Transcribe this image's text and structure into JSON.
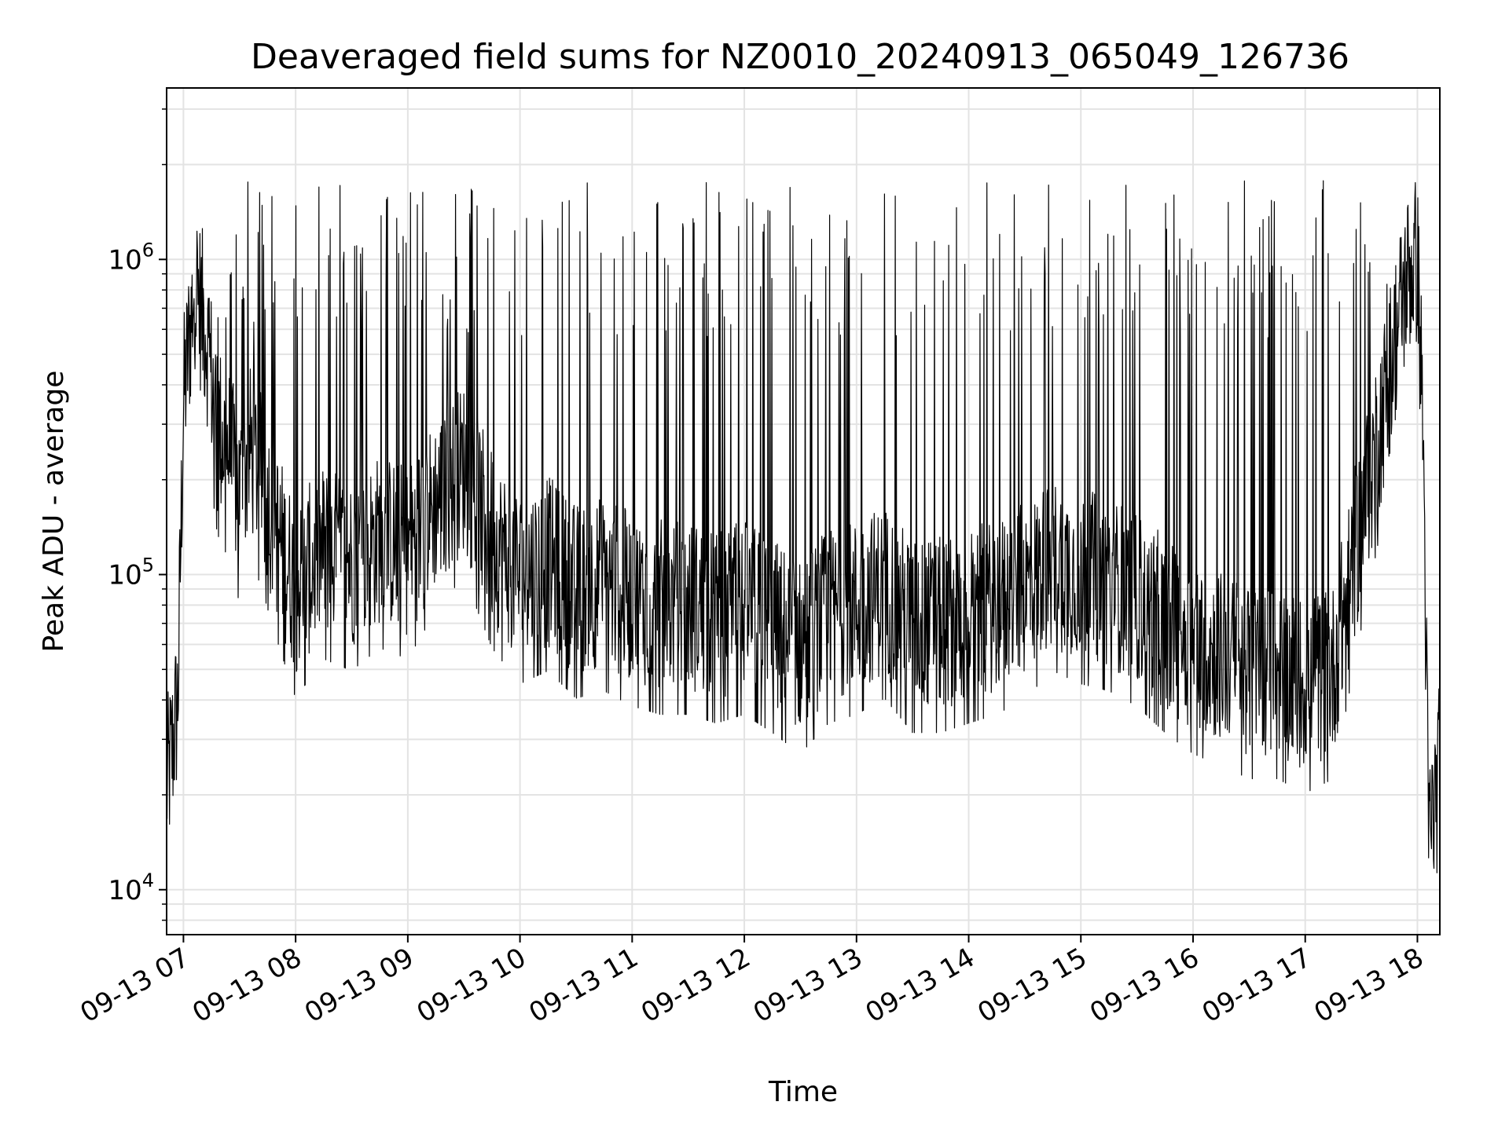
{
  "chart_data": {
    "type": "line",
    "title": "Deaveraged field sums for NZ0010_20240913_065049_126736",
    "xlabel": "Time",
    "ylabel": "Peak ADU - average",
    "y_scale": "log",
    "grid": true,
    "xlim": [
      "09-13 06:51",
      "09-13 18:12"
    ],
    "ylim": [
      7200,
      3500000
    ],
    "x_ticks": [
      "09-13 07",
      "09-13 08",
      "09-13 09",
      "09-13 10",
      "09-13 11",
      "09-13 12",
      "09-13 13",
      "09-13 14",
      "09-13 15",
      "09-13 16",
      "09-13 17",
      "09-13 18"
    ],
    "y_ticks": [
      {
        "value": 10000,
        "base": "10",
        "exp": "4"
      },
      {
        "value": 100000,
        "base": "10",
        "exp": "5"
      },
      {
        "value": 1000000,
        "base": "10",
        "exp": "6"
      }
    ],
    "line_color": "#000000",
    "series": [
      {
        "x": [
          "09-13 06:51",
          "09-13 06:54",
          "09-13 06:57",
          "09-13 07:00",
          "09-13 07:06",
          "09-13 07:12",
          "09-13 07:18",
          "09-13 07:24",
          "09-13 07:30",
          "09-13 07:36",
          "09-13 07:42",
          "09-13 07:48",
          "09-13 08:00",
          "09-13 08:15",
          "09-13 08:30",
          "09-13 08:45",
          "09-13 09:00",
          "09-13 09:15",
          "09-13 09:30",
          "09-13 09:45",
          "09-13 10:00",
          "09-13 10:15",
          "09-13 10:30",
          "09-13 10:45",
          "09-13 11:00",
          "09-13 11:15",
          "09-13 11:30",
          "09-13 11:45",
          "09-13 12:00",
          "09-13 12:15",
          "09-13 12:30",
          "09-13 12:45",
          "09-13 13:00",
          "09-13 13:15",
          "09-13 13:30",
          "09-13 13:45",
          "09-13 14:00",
          "09-13 14:15",
          "09-13 14:30",
          "09-13 14:45",
          "09-13 15:00",
          "09-13 15:15",
          "09-13 15:30",
          "09-13 15:45",
          "09-13 16:00",
          "09-13 16:15",
          "09-13 16:30",
          "09-13 16:45",
          "09-13 17:00",
          "09-13 17:15",
          "09-13 17:30",
          "09-13 17:40",
          "09-13 17:50",
          "09-13 17:55",
          "09-13 18:00",
          "09-13 18:03",
          "09-13 18:06",
          "09-13 18:09",
          "09-13 18:12"
        ],
        "values": [
          21000,
          28000,
          40000,
          350000,
          850000,
          600000,
          300000,
          250000,
          180000,
          250000,
          200000,
          150000,
          90000,
          120000,
          110000,
          130000,
          120000,
          170000,
          220000,
          130000,
          100000,
          110000,
          90000,
          95000,
          85000,
          80000,
          80000,
          75000,
          80000,
          70000,
          60000,
          75000,
          80000,
          90000,
          70000,
          70000,
          75000,
          80000,
          90000,
          110000,
          100000,
          95000,
          85000,
          70000,
          60000,
          55000,
          50000,
          50000,
          45000,
          50000,
          150000,
          300000,
          650000,
          900000,
          1000000,
          300000,
          15000,
          18000,
          25000
        ]
      }
    ]
  }
}
